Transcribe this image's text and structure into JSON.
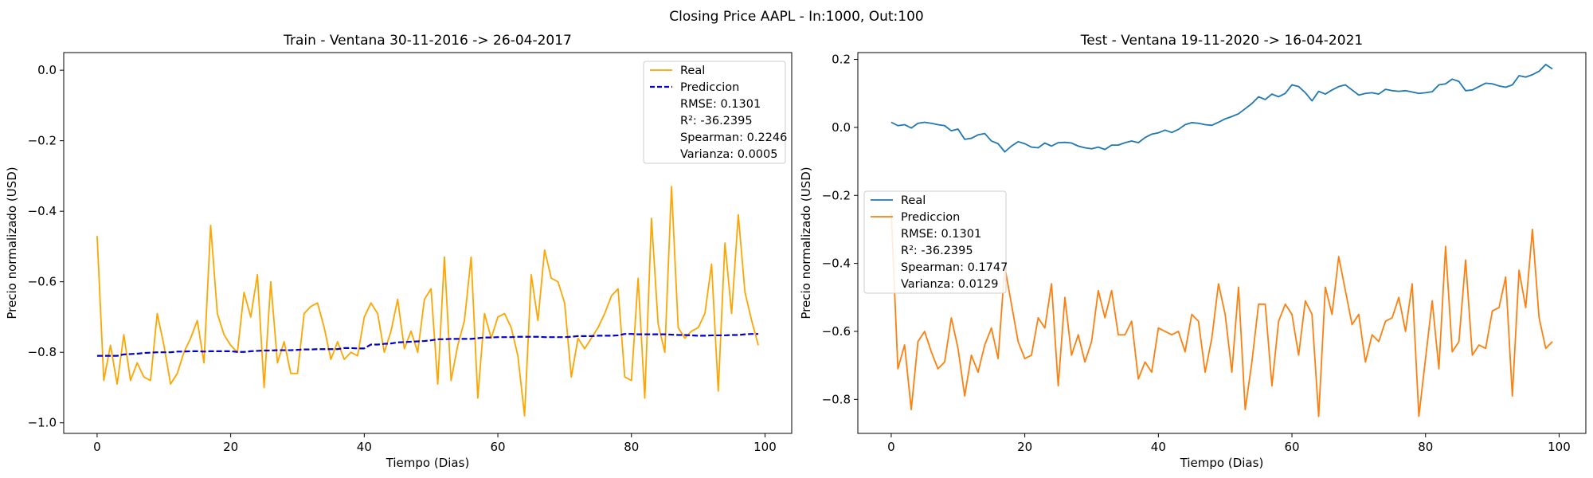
{
  "figure": {
    "suptitle": "Closing Price AAPL - In:1000, Out:100"
  },
  "chart_data": [
    {
      "type": "line",
      "title": "Train - Ventana 30-11-2016 -> 26-04-2017",
      "xlabel": "Tiempo (Dias)",
      "ylabel": "Precio normalizado (USD)",
      "xlim": [
        -5,
        104
      ],
      "ylim": [
        -1.03,
        0.05
      ],
      "xticks": [
        0,
        20,
        40,
        60,
        80,
        100
      ],
      "xtick_labels": [
        "0",
        "20",
        "40",
        "60",
        "80",
        "100"
      ],
      "yticks": [
        -1.0,
        -0.8,
        -0.6,
        -0.4,
        -0.2,
        0.0
      ],
      "ytick_labels": [
        "−1.0",
        "−0.8",
        "−0.6",
        "−0.4",
        "−0.2",
        "0.0"
      ],
      "grid": false,
      "legend_position": "top-right",
      "series": [
        {
          "name": "Real",
          "color": "#ffa500",
          "style": "solid",
          "values": [
            -0.47,
            -0.88,
            -0.78,
            -0.89,
            -0.75,
            -0.88,
            -0.83,
            -0.87,
            -0.88,
            -0.69,
            -0.78,
            -0.89,
            -0.86,
            -0.8,
            -0.76,
            -0.71,
            -0.83,
            -0.44,
            -0.69,
            -0.75,
            -0.78,
            -0.8,
            -0.63,
            -0.7,
            -0.58,
            -0.9,
            -0.6,
            -0.83,
            -0.77,
            -0.86,
            -0.86,
            -0.69,
            -0.67,
            -0.66,
            -0.73,
            -0.82,
            -0.77,
            -0.82,
            -0.8,
            -0.81,
            -0.7,
            -0.66,
            -0.69,
            -0.8,
            -0.74,
            -0.65,
            -0.79,
            -0.74,
            -0.8,
            -0.65,
            -0.62,
            -0.89,
            -0.53,
            -0.88,
            -0.78,
            -0.71,
            -0.53,
            -0.93,
            -0.69,
            -0.76,
            -0.7,
            -0.69,
            -0.73,
            -0.81,
            -0.98,
            -0.58,
            -0.71,
            -0.51,
            -0.59,
            -0.6,
            -0.66,
            -0.87,
            -0.76,
            -0.79,
            -0.76,
            -0.73,
            -0.69,
            -0.64,
            -0.62,
            -0.87,
            -0.88,
            -0.59,
            -0.93,
            -0.42,
            -0.72,
            -0.8,
            -0.33,
            -0.73,
            -0.76,
            -0.74,
            -0.73,
            -0.69,
            -0.55,
            -0.91,
            -0.49,
            -0.69,
            -0.41,
            -0.63,
            -0.71,
            -0.78
          ]
        },
        {
          "name": "Prediccion",
          "color": "#0000cc",
          "style": "dashed",
          "values": [
            -0.81,
            -0.81,
            -0.81,
            -0.81,
            -0.806,
            -0.805,
            -0.804,
            -0.802,
            -0.801,
            -0.8,
            -0.8,
            -0.8,
            -0.798,
            -0.798,
            -0.797,
            -0.797,
            -0.798,
            -0.797,
            -0.797,
            -0.797,
            -0.797,
            -0.799,
            -0.799,
            -0.797,
            -0.796,
            -0.795,
            -0.795,
            -0.794,
            -0.794,
            -0.794,
            -0.793,
            -0.792,
            -0.792,
            -0.791,
            -0.791,
            -0.791,
            -0.791,
            -0.788,
            -0.788,
            -0.789,
            -0.789,
            -0.778,
            -0.778,
            -0.776,
            -0.775,
            -0.772,
            -0.771,
            -0.77,
            -0.769,
            -0.768,
            -0.766,
            -0.763,
            -0.763,
            -0.762,
            -0.762,
            -0.762,
            -0.762,
            -0.76,
            -0.758,
            -0.758,
            -0.757,
            -0.757,
            -0.757,
            -0.756,
            -0.756,
            -0.756,
            -0.756,
            -0.757,
            -0.757,
            -0.757,
            -0.757,
            -0.756,
            -0.754,
            -0.754,
            -0.754,
            -0.753,
            -0.753,
            -0.753,
            -0.752,
            -0.748,
            -0.748,
            -0.749,
            -0.749,
            -0.749,
            -0.749,
            -0.749,
            -0.75,
            -0.751,
            -0.751,
            -0.752,
            -0.753,
            -0.753,
            -0.752,
            -0.752,
            -0.752,
            -0.751,
            -0.751,
            -0.749,
            -0.748,
            -0.748
          ]
        }
      ],
      "legend_extra": [
        "RMSE: 0.1301",
        "R²: -36.2395",
        "Spearman: 0.2246",
        "Varianza: 0.0005"
      ]
    },
    {
      "type": "line",
      "title": "Test - Ventana 19-11-2020 -> 16-04-2021",
      "xlabel": "Tiempo (Dias)",
      "ylabel": "Precio normalizado (USD)",
      "xlim": [
        -5,
        104
      ],
      "ylim": [
        -0.9,
        0.22
      ],
      "xticks": [
        0,
        20,
        40,
        60,
        80,
        100
      ],
      "xtick_labels": [
        "0",
        "20",
        "40",
        "60",
        "80",
        "100"
      ],
      "yticks": [
        -0.8,
        -0.6,
        -0.4,
        -0.2,
        0.0,
        0.2
      ],
      "ytick_labels": [
        "−0.8",
        "−0.6",
        "−0.4",
        "−0.2",
        "0.0",
        "0.2"
      ],
      "grid": false,
      "legend_position": "center-left",
      "series": [
        {
          "name": "Real",
          "color": "#1f77b4",
          "style": "solid",
          "values": [
            0.015,
            0.005,
            0.008,
            -0.002,
            0.012,
            0.015,
            0.012,
            0.008,
            0.005,
            -0.01,
            -0.005,
            -0.035,
            -0.032,
            -0.022,
            -0.018,
            -0.04,
            -0.048,
            -0.072,
            -0.055,
            -0.042,
            -0.048,
            -0.058,
            -0.06,
            -0.046,
            -0.055,
            -0.045,
            -0.044,
            -0.046,
            -0.055,
            -0.06,
            -0.063,
            -0.058,
            -0.065,
            -0.052,
            -0.052,
            -0.045,
            -0.04,
            -0.045,
            -0.03,
            -0.02,
            -0.016,
            -0.008,
            -0.015,
            -0.006,
            0.008,
            0.014,
            0.012,
            0.008,
            0.006,
            0.015,
            0.025,
            0.032,
            0.04,
            0.055,
            0.07,
            0.09,
            0.082,
            0.098,
            0.09,
            0.1,
            0.125,
            0.12,
            0.102,
            0.078,
            0.106,
            0.098,
            0.11,
            0.12,
            0.125,
            0.11,
            0.095,
            0.1,
            0.102,
            0.098,
            0.112,
            0.108,
            0.106,
            0.108,
            0.104,
            0.1,
            0.102,
            0.105,
            0.125,
            0.128,
            0.142,
            0.135,
            0.108,
            0.11,
            0.12,
            0.13,
            0.128,
            0.122,
            0.118,
            0.125,
            0.152,
            0.148,
            0.155,
            0.165,
            0.185,
            0.172
          ]
        },
        {
          "name": "Prediccion",
          "color": "#ff7f0e",
          "style": "solid",
          "values": [
            -0.25,
            -0.71,
            -0.64,
            -0.83,
            -0.63,
            -0.6,
            -0.66,
            -0.71,
            -0.69,
            -0.56,
            -0.65,
            -0.79,
            -0.67,
            -0.72,
            -0.64,
            -0.59,
            -0.68,
            -0.41,
            -0.52,
            -0.63,
            -0.68,
            -0.67,
            -0.56,
            -0.59,
            -0.46,
            -0.76,
            -0.5,
            -0.67,
            -0.61,
            -0.69,
            -0.63,
            -0.48,
            -0.56,
            -0.48,
            -0.61,
            -0.61,
            -0.57,
            -0.74,
            -0.69,
            -0.72,
            -0.59,
            -0.6,
            -0.61,
            -0.6,
            -0.66,
            -0.55,
            -0.57,
            -0.72,
            -0.62,
            -0.46,
            -0.55,
            -0.72,
            -0.47,
            -0.83,
            -0.69,
            -0.52,
            -0.52,
            -0.76,
            -0.57,
            -0.52,
            -0.55,
            -0.67,
            -0.51,
            -0.55,
            -0.85,
            -0.47,
            -0.55,
            -0.38,
            -0.48,
            -0.58,
            -0.55,
            -0.69,
            -0.61,
            -0.63,
            -0.57,
            -0.56,
            -0.5,
            -0.6,
            -0.46,
            -0.85,
            -0.68,
            -0.51,
            -0.71,
            -0.35,
            -0.66,
            -0.63,
            -0.39,
            -0.67,
            -0.64,
            -0.65,
            -0.54,
            -0.53,
            -0.44,
            -0.79,
            -0.42,
            -0.53,
            -0.3,
            -0.56,
            -0.65,
            -0.63
          ]
        }
      ],
      "legend_extra": [
        "RMSE: 0.1301",
        "R²: -36.2395",
        "Spearman: 0.1747",
        "Varianza: 0.0129"
      ]
    }
  ]
}
